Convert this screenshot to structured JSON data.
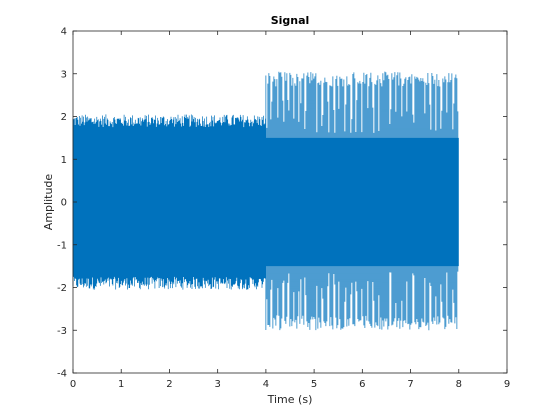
{
  "chart_data": {
    "type": "line",
    "title": "Signal",
    "xlabel": "Time (s)",
    "ylabel": "Amplitude",
    "xlim": [
      0,
      9
    ],
    "ylim": [
      -4,
      4
    ],
    "x_ticks": [
      0,
      1,
      2,
      3,
      4,
      5,
      6,
      7,
      8,
      9
    ],
    "y_ticks": [
      -4,
      -3,
      -2,
      -1,
      0,
      1,
      2,
      3,
      4
    ],
    "x_tick_labels": [
      "0",
      "1",
      "2",
      "3",
      "4",
      "5",
      "6",
      "7",
      "8",
      "9"
    ],
    "y_tick_labels": [
      "-4",
      "-3",
      "-2",
      "-1",
      "0",
      "1",
      "2",
      "3",
      "4"
    ],
    "grid": false,
    "box": true,
    "line_color": "#0072BD",
    "axis_color": "#262626",
    "series": [
      {
        "segments": [
          {
            "t_start": 0.0,
            "t_end": 4.0,
            "pattern": "dense-noise",
            "upper_range": [
              1.75,
              2.05
            ],
            "lower_range": [
              -2.05,
              -1.75
            ],
            "core_fill": [
              -1.7,
              1.7
            ]
          },
          {
            "t_start": 4.0,
            "t_end": 8.0,
            "pattern": "periodic-bursts",
            "upper_range": [
              2.7,
              3.05
            ],
            "lower_range": [
              -3.0,
              -2.65
            ],
            "core_fill": [
              -1.5,
              1.5
            ]
          }
        ]
      }
    ]
  }
}
